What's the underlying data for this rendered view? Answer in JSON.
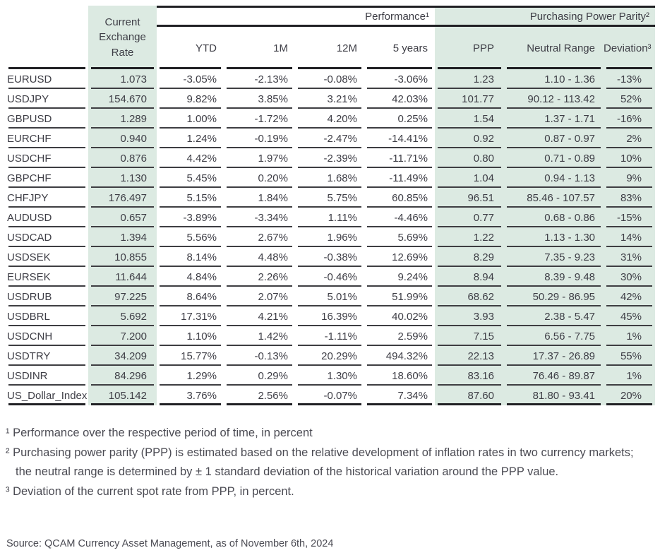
{
  "header": {
    "rate_column": "Current Exchange Rate",
    "performance_group": "Performance¹",
    "ppp_group": "Purchasing Power Parity²",
    "perf_columns": [
      "YTD",
      "1M",
      "12M",
      "5 years"
    ],
    "ppp_columns": [
      "PPP",
      "Neutral Range",
      "Deviation³"
    ]
  },
  "rows": [
    {
      "pair": "EURUSD",
      "rate": "1.073",
      "ytd": "-3.05%",
      "m1": "-2.13%",
      "m12": "-0.08%",
      "y5": "-3.06%",
      "ppp": "1.23",
      "range": "1.10 - 1.36",
      "dev": "-13%"
    },
    {
      "pair": "USDJPY",
      "rate": "154.670",
      "ytd": "9.82%",
      "m1": "3.85%",
      "m12": "3.21%",
      "y5": "42.03%",
      "ppp": "101.77",
      "range": "90.12 - 113.42",
      "dev": "52%"
    },
    {
      "pair": "GBPUSD",
      "rate": "1.289",
      "ytd": "1.00%",
      "m1": "-1.72%",
      "m12": "4.20%",
      "y5": "0.25%",
      "ppp": "1.54",
      "range": "1.37 - 1.71",
      "dev": "-16%"
    },
    {
      "pair": "EURCHF",
      "rate": "0.940",
      "ytd": "1.24%",
      "m1": "-0.19%",
      "m12": "-2.47%",
      "y5": "-14.41%",
      "ppp": "0.92",
      "range": "0.87 - 0.97",
      "dev": "2%"
    },
    {
      "pair": "USDCHF",
      "rate": "0.876",
      "ytd": "4.42%",
      "m1": "1.97%",
      "m12": "-2.39%",
      "y5": "-11.71%",
      "ppp": "0.80",
      "range": "0.71 - 0.89",
      "dev": "10%"
    },
    {
      "pair": "GBPCHF",
      "rate": "1.130",
      "ytd": "5.45%",
      "m1": "0.20%",
      "m12": "1.68%",
      "y5": "-11.49%",
      "ppp": "1.04",
      "range": "0.94 - 1.13",
      "dev": "9%"
    },
    {
      "pair": "CHFJPY",
      "rate": "176.497",
      "ytd": "5.15%",
      "m1": "1.84%",
      "m12": "5.75%",
      "y5": "60.85%",
      "ppp": "96.51",
      "range": "85.46 - 107.57",
      "dev": "83%"
    },
    {
      "pair": "AUDUSD",
      "rate": "0.657",
      "ytd": "-3.89%",
      "m1": "-3.34%",
      "m12": "1.11%",
      "y5": "-4.46%",
      "ppp": "0.77",
      "range": "0.68 - 0.86",
      "dev": "-15%"
    },
    {
      "pair": "USDCAD",
      "rate": "1.394",
      "ytd": "5.56%",
      "m1": "2.67%",
      "m12": "1.96%",
      "y5": "5.69%",
      "ppp": "1.22",
      "range": "1.13 - 1.30",
      "dev": "14%"
    },
    {
      "pair": "USDSEK",
      "rate": "10.855",
      "ytd": "8.14%",
      "m1": "4.48%",
      "m12": "-0.38%",
      "y5": "12.69%",
      "ppp": "8.29",
      "range": "7.35 - 9.23",
      "dev": "31%"
    },
    {
      "pair": "EURSEK",
      "rate": "11.644",
      "ytd": "4.84%",
      "m1": "2.26%",
      "m12": "-0.46%",
      "y5": "9.24%",
      "ppp": "8.94",
      "range": "8.39 - 9.48",
      "dev": "30%"
    },
    {
      "pair": "USDRUB",
      "rate": "97.225",
      "ytd": "8.64%",
      "m1": "2.07%",
      "m12": "5.01%",
      "y5": "51.99%",
      "ppp": "68.62",
      "range": "50.29 - 86.95",
      "dev": "42%"
    },
    {
      "pair": "USDBRL",
      "rate": "5.692",
      "ytd": "17.31%",
      "m1": "4.21%",
      "m12": "16.39%",
      "y5": "40.02%",
      "ppp": "3.93",
      "range": "2.38 - 5.47",
      "dev": "45%"
    },
    {
      "pair": "USDCNH",
      "rate": "7.200",
      "ytd": "1.10%",
      "m1": "1.42%",
      "m12": "-1.11%",
      "y5": "2.59%",
      "ppp": "7.15",
      "range": "6.56 - 7.75",
      "dev": "1%"
    },
    {
      "pair": "USDTRY",
      "rate": "34.209",
      "ytd": "15.77%",
      "m1": "-0.13%",
      "m12": "20.29%",
      "y5": "494.32%",
      "ppp": "22.13",
      "range": "17.37 - 26.89",
      "dev": "55%"
    },
    {
      "pair": "USDINR",
      "rate": "84.296",
      "ytd": "1.29%",
      "m1": "0.29%",
      "m12": "1.30%",
      "y5": "18.60%",
      "ppp": "83.16",
      "range": "76.46 - 89.87",
      "dev": "1%"
    },
    {
      "pair": "US_Dollar_Index",
      "rate": "105.142",
      "ytd": "3.76%",
      "m1": "2.56%",
      "m12": "-0.07%",
      "y5": "7.34%",
      "ppp": "87.60",
      "range": "81.80 - 93.41",
      "dev": "20%"
    }
  ],
  "footnotes": [
    "¹ Performance over the respective period of time, in percent",
    "² Purchasing power parity (PPP) is estimated based on the relative development of inflation rates in two currency markets; the neutral range is determined by ± 1 standard deviation of the historical variation around the PPP value.",
    "³ Deviation of the current spot rate from PPP, in percent."
  ],
  "source": "Source: QCAM Currency Asset Management, as of November 6th, 2024",
  "colors": {
    "highlight_green": "#dceae2",
    "row_line": "#3e3e42",
    "thick_line": "#202024",
    "text": "#3e3e46"
  }
}
